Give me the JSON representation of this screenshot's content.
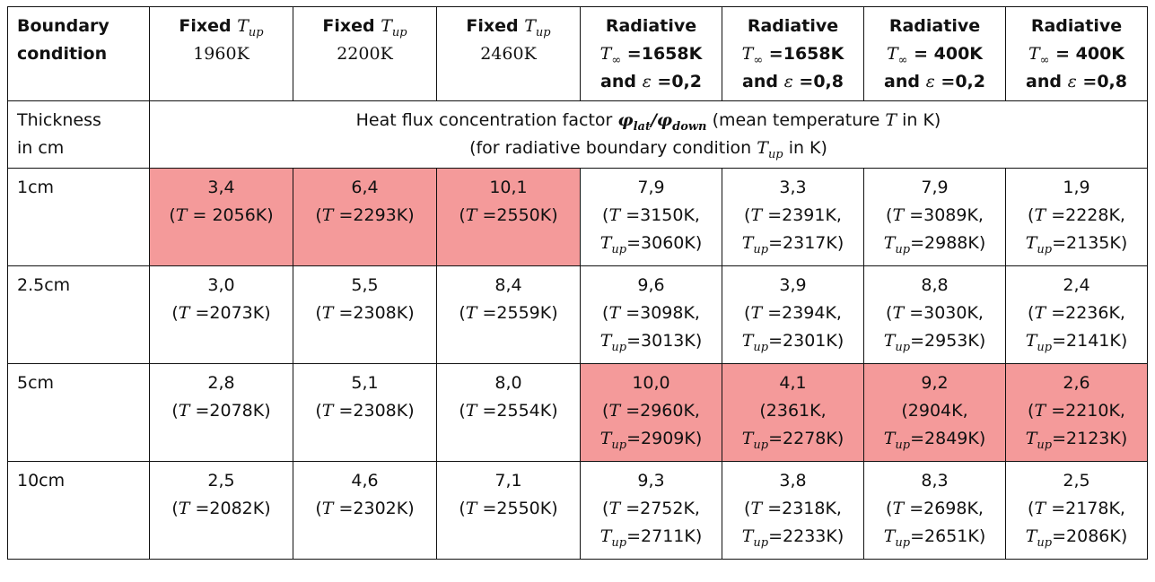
{
  "header": {
    "corner": [
      "Boundary",
      "condition"
    ],
    "fixed": [
      {
        "label": "Fixed",
        "value": "1960K"
      },
      {
        "label": "Fixed",
        "value": "2200K"
      },
      {
        "label": "Fixed",
        "value": "2460K"
      }
    ],
    "radiative": [
      {
        "label": "Radiative",
        "tinf": "1658K",
        "eps": "0,2"
      },
      {
        "label": "Radiative",
        "tinf": "1658K",
        "eps": "0,8"
      },
      {
        "label": "Radiative",
        "tinf": "400K",
        "eps": "0,2"
      },
      {
        "label": "Radiative",
        "tinf": "400K",
        "eps": "0,8"
      }
    ],
    "and_text": "and"
  },
  "thickness_row": {
    "label": [
      "Thickness",
      "in cm"
    ],
    "desc_line1_pre": "Heat flux concentration factor",
    "desc_line1_post": "(mean temperature",
    "desc_line1_end": "in K)",
    "desc_line2_pre": "(for radiative boundary condition",
    "desc_line2_end": "in K)"
  },
  "rows": [
    {
      "thickness": "1cm",
      "fixed": [
        {
          "value": "3,4",
          "t": "= 2056K)"
        },
        {
          "value": "6,4",
          "t": "=2293K)"
        },
        {
          "value": "10,1",
          "t": "=2550K)"
        }
      ],
      "radiative": [
        {
          "value": "7,9",
          "t": "=3150K,",
          "tup": "=3060K)",
          "showT": true
        },
        {
          "value": "3,3",
          "t": "=2391K,",
          "tup": "=2317K)",
          "showT": true
        },
        {
          "value": "7,9",
          "t": "=3089K,",
          "tup": "=2988K)",
          "showT": true
        },
        {
          "value": "1,9",
          "t": "=2228K,",
          "tup": "=2135K)",
          "showT": true
        }
      ],
      "hl_fixed": true,
      "hl_rad": false
    },
    {
      "thickness": "2.5cm",
      "fixed": [
        {
          "value": "3,0",
          "t": "=2073K)"
        },
        {
          "value": "5,5",
          "t": "=2308K)"
        },
        {
          "value": "8,4",
          "t": "=2559K)"
        }
      ],
      "radiative": [
        {
          "value": "9,6",
          "t": "=3098K,",
          "tup": "=3013K)",
          "showT": true
        },
        {
          "value": "3,9",
          "t": "=2394K,",
          "tup": "=2301K)",
          "showT": true
        },
        {
          "value": "8,8",
          "t": "=3030K,",
          "tup": "=2953K)",
          "showT": true
        },
        {
          "value": "2,4",
          "t": "=2236K,",
          "tup": "=2141K)",
          "showT": true
        }
      ],
      "hl_fixed": false,
      "hl_rad": false
    },
    {
      "thickness": "5cm",
      "fixed": [
        {
          "value": "2,8",
          "t": "=2078K)"
        },
        {
          "value": "5,1",
          "t": "=2308K)"
        },
        {
          "value": "8,0",
          "t": "=2554K)"
        }
      ],
      "radiative": [
        {
          "value": "10,0",
          "t": "=2960K,",
          "tup": "=2909K)",
          "showT": true
        },
        {
          "value": "4,1",
          "t": "(2361K,",
          "tup": "=2278K)",
          "showT": false
        },
        {
          "value": "9,2",
          "t": "(2904K,",
          "tup": "=2849K)",
          "showT": false
        },
        {
          "value": "2,6",
          "t": "=2210K,",
          "tup": "=2123K)",
          "showT": true
        }
      ],
      "hl_fixed": false,
      "hl_rad": true
    },
    {
      "thickness": "10cm",
      "fixed": [
        {
          "value": "2,5",
          "t": "=2082K)"
        },
        {
          "value": "4,6",
          "t": "=2302K)"
        },
        {
          "value": "7,1",
          "t": "=2550K)"
        }
      ],
      "radiative": [
        {
          "value": "9,3",
          "t": "=2752K,",
          "tup": "=2711K)",
          "showT": true
        },
        {
          "value": "3,8",
          "t": "=2318K,",
          "tup": "=2233K)",
          "showT": true
        },
        {
          "value": "8,3",
          "t": "=2698K,",
          "tup": "=2651K)",
          "showT": true
        },
        {
          "value": "2,5",
          "t": "=2178K,",
          "tup": "=2086K)",
          "showT": true
        }
      ],
      "hl_fixed": false,
      "hl_rad": false
    }
  ],
  "colors": {
    "highlight": "#f49a9a",
    "border": "#111111"
  }
}
